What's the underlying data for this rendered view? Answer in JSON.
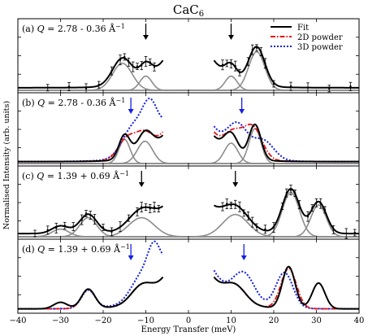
{
  "chart_data": {
    "type": "line",
    "title": "CaC₆",
    "title_main": "CaC",
    "title_sub": "6",
    "xlabel": "Energy Transfer (meV)",
    "ylabel": "Normalised Intensity (arb. units)",
    "xlim": [
      -40,
      40
    ],
    "x_ticks": [
      -40,
      -30,
      -20,
      -10,
      0,
      10,
      20,
      30,
      40
    ],
    "x_tick_labels": [
      "−40",
      "−30",
      "−20",
      "−10",
      "0",
      "10",
      "20",
      "30",
      "40"
    ],
    "legend": {
      "placement": "top-right",
      "entries": [
        {
          "label": "Fit",
          "color": "#000000",
          "dash": "solid"
        },
        {
          "label": "2D powder",
          "color": "#e8141a",
          "dash": "dashdot"
        },
        {
          "label": "3D powder",
          "color": "#1420e0",
          "dash": "dotted"
        }
      ]
    },
    "colors": {
      "fit": "#000000",
      "component": "#8c8c8c",
      "powder_2d": "#e8141a",
      "powder_3d": "#1420e0",
      "arrow_black": "#000000",
      "arrow_blue": "#1420e0"
    },
    "panels": [
      {
        "label": "(a)",
        "text_prefix": "(a) ",
        "q_text": "Q",
        "q_value": " = 2.78 - 0.36 Å",
        "q_sup": "−1",
        "ylim": [
          0,
          1
        ],
        "elastic_gap": [
          -6,
          6
        ],
        "fit": {
          "baseline": 0.04,
          "peaks": [
            [
              -15.5,
              0.42,
              2.3
            ],
            [
              -10.0,
              0.22,
              1.4
            ],
            [
              10.0,
              0.22,
              1.4
            ],
            [
              16.0,
              0.6,
              1.9
            ]
          ],
          "elastic": [
            0.55,
            4.2
          ]
        },
        "components": [
          [
            -15.5,
            0.42,
            2.3
          ],
          [
            -10.0,
            0.22,
            1.4
          ],
          [
            10.0,
            0.22,
            1.4
          ],
          [
            16.0,
            0.6,
            1.9
          ]
        ],
        "arrows": [
          {
            "x": -10,
            "color": "black"
          },
          {
            "x": 10,
            "color": "black"
          }
        ],
        "points": [
          -33,
          -28,
          -24,
          -21,
          -18,
          -16,
          -15,
          -14,
          -13,
          -12,
          -11,
          -10,
          -9,
          -8,
          8,
          9,
          10,
          11,
          12,
          14,
          15,
          16,
          17,
          18,
          20,
          24,
          28,
          33,
          38
        ]
      },
      {
        "label": "(b)",
        "text_prefix": "(b) ",
        "q_text": "Q",
        "q_value": " = 2.78 - 0.36 Å",
        "q_sup": "−1",
        "ylim": [
          0,
          1
        ],
        "elastic_gap": [
          -6,
          6
        ],
        "fit": {
          "baseline": 0.03,
          "peaks": [
            [
              -15.0,
              0.38,
              1.3
            ],
            [
              -10.2,
              0.35,
              1.8
            ],
            [
              10.0,
              0.32,
              1.6
            ],
            [
              15.6,
              0.55,
              1.4
            ]
          ],
          "elastic": [
            0.55,
            4.0
          ]
        },
        "powder_2d": {
          "baseline": 0.03,
          "peaks": [
            [
              -14.5,
              0.3,
              2.0
            ],
            [
              -10.5,
              0.3,
              2.0
            ],
            [
              10.5,
              0.3,
              2.0
            ],
            [
              15.0,
              0.5,
              2.2
            ]
          ],
          "elastic": [
            0.58,
            4.2
          ]
        },
        "powder_3d": {
          "baseline": 0.03,
          "peaks": [
            [
              -13.0,
              0.45,
              2.5
            ],
            [
              -9.0,
              0.6,
              1.8
            ],
            [
              11.5,
              0.45,
              2.3
            ],
            [
              17.5,
              0.3,
              2.5
            ]
          ],
          "elastic": [
            0.65,
            4.4
          ]
        },
        "components": [
          [
            -15.0,
            0.38,
            1.3
          ],
          [
            -10.2,
            0.35,
            1.8
          ],
          [
            10.0,
            0.32,
            1.6
          ],
          [
            15.6,
            0.55,
            1.4
          ]
        ],
        "arrows": [
          {
            "x": -13.5,
            "color": "blue"
          },
          {
            "x": 12.5,
            "color": "blue"
          }
        ],
        "points": []
      },
      {
        "label": "(c)",
        "text_prefix": "(c) ",
        "q_text": "Q",
        "q_value": " = 1.39 + 0.69 Å",
        "q_sup": "−1",
        "ylim": [
          0,
          1
        ],
        "elastic_gap": [
          -6,
          6
        ],
        "fit": {
          "baseline": 0.05,
          "peaks": [
            [
              -30.0,
              0.12,
              2.0
            ],
            [
              -23.5,
              0.3,
              2.0
            ],
            [
              -11.0,
              0.3,
              3.0
            ],
            [
              11.0,
              0.35,
              3.0
            ],
            [
              24.0,
              0.7,
              2.0
            ],
            [
              30.5,
              0.5,
              1.8
            ]
          ],
          "elastic": [
            0.5,
            4.0
          ]
        },
        "components": [
          [
            -30.0,
            0.12,
            2.0
          ],
          [
            -23.5,
            0.3,
            2.0
          ],
          [
            -11.0,
            0.3,
            3.0
          ],
          [
            11.0,
            0.35,
            3.0
          ],
          [
            24.0,
            0.7,
            2.0
          ],
          [
            30.5,
            0.5,
            1.8
          ]
        ],
        "arrows": [
          {
            "x": -11,
            "color": "black"
          },
          {
            "x": 11,
            "color": "black"
          }
        ],
        "points": [
          -36,
          -33,
          -31,
          -29,
          -27,
          -25,
          -24,
          -23,
          -22,
          -20,
          -18,
          -16,
          -14,
          -12,
          -11,
          -10,
          -9,
          -8,
          -7,
          8,
          9,
          10,
          11,
          12,
          13,
          14,
          15,
          16,
          18,
          20,
          22,
          23,
          24,
          25,
          26,
          28,
          29,
          30,
          31,
          32,
          34,
          37,
          39
        ]
      },
      {
        "label": "(d)",
        "text_prefix": "(d) ",
        "q_text": "Q",
        "q_value": " = 1.39 + 0.69 Å",
        "q_sup": "−1",
        "ylim": [
          0,
          1
        ],
        "elastic_gap": [
          -6,
          6
        ],
        "fit": {
          "baseline": 0.03,
          "peaks": [
            [
              -30.0,
              0.1,
              1.6
            ],
            [
              -23.5,
              0.3,
              1.6
            ],
            [
              -11.0,
              0.25,
              2.5
            ],
            [
              11.0,
              0.25,
              2.5
            ],
            [
              23.5,
              0.65,
              1.5
            ],
            [
              30.5,
              0.4,
              1.5
            ]
          ],
          "elastic": [
            0.6,
            4.2
          ]
        },
        "powder_2d": {
          "baseline": 0.03,
          "peaks": [
            [
              -23.5,
              0.3,
              1.6
            ],
            [
              -11.0,
              0.25,
              2.5
            ],
            [
              11.0,
              0.25,
              2.5
            ],
            [
              23.5,
              0.62,
              1.8
            ]
          ],
          "elastic": [
            0.6,
            4.2
          ]
        },
        "powder_3d": {
          "baseline": 0.03,
          "peaks": [
            [
              -23.5,
              0.28,
              1.6
            ],
            [
              -11.0,
              0.35,
              2.5
            ],
            [
              -8.0,
              0.5,
              1.5
            ],
            [
              13.0,
              0.45,
              2.5
            ],
            [
              22.5,
              0.55,
              2.0
            ]
          ],
          "elastic": [
            0.7,
            4.5
          ]
        },
        "components": [],
        "arrows": [
          {
            "x": -13.5,
            "color": "blue"
          },
          {
            "x": 13.0,
            "color": "blue"
          }
        ],
        "points": []
      }
    ]
  }
}
